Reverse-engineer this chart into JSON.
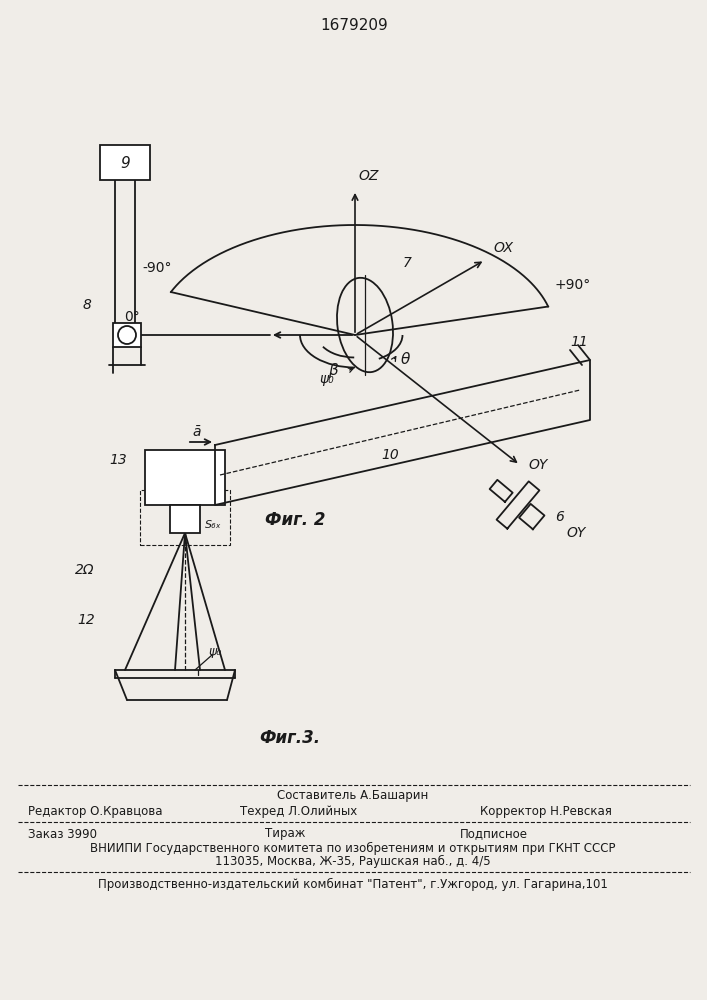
{
  "title": "1679209",
  "bg_color": "#f0ede8",
  "line_color": "#1a1a1a",
  "fig2_label": "Фиг. 2",
  "fig3_label": "Фиг.3.",
  "footer": {
    "line1_center": "Составитель А.Башарин",
    "line2_left": "Редактор О.Кравцова",
    "line2_mid": "Техред Л.Олийных",
    "line2_right": "Корректор Н.Ревская",
    "line3_left": "Заказ 3990",
    "line3_mid": "Тираж",
    "line3_right": "Подписное",
    "line4": "ВНИИПИ Государственного комитета по изобретениям и открытиям при ГКНТ СССР",
    "line5": "113035, Москва, Ж-35, Раушская наб., д. 4/5",
    "line6": "Производственно-издательский комбинат \"Патент\", г.Ужгород, ул. Гагарина,101"
  }
}
